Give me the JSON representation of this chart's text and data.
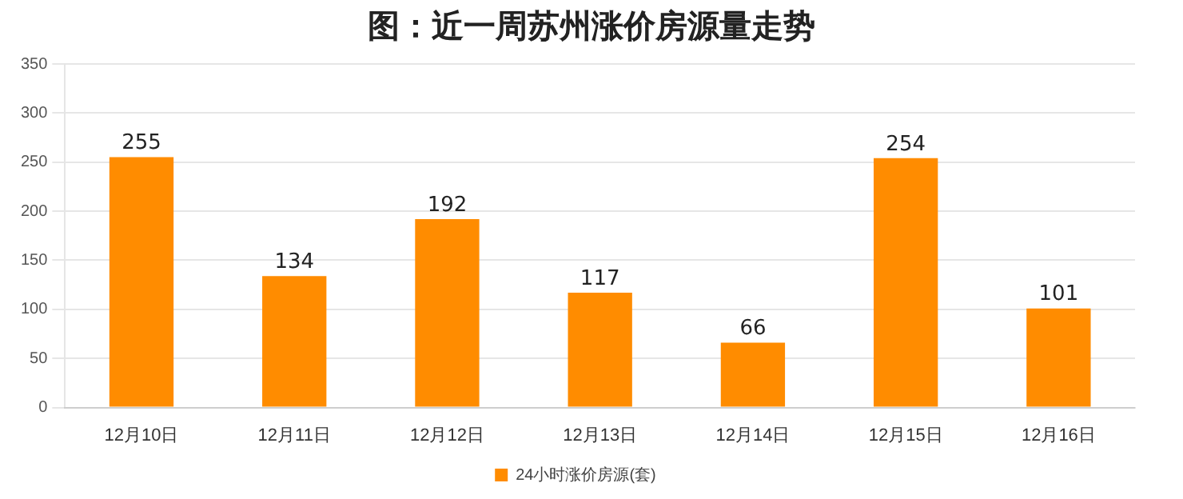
{
  "chart_data": {
    "type": "bar",
    "title": "图：近一周苏州涨价房源量走势",
    "categories": [
      "12月10日",
      "12月11日",
      "12月12日",
      "12月13日",
      "12月14日",
      "12月15日",
      "12月16日"
    ],
    "series": [
      {
        "name": "24小时涨价房源(套)",
        "color": "#ff8c00",
        "values": [
          255,
          134,
          192,
          117,
          66,
          254,
          101
        ]
      }
    ],
    "ylim": [
      0,
      350
    ],
    "yticks": [
      0,
      50,
      100,
      150,
      200,
      250,
      300,
      350
    ],
    "grid": "y",
    "legend": "bottom",
    "data_labels": true
  }
}
